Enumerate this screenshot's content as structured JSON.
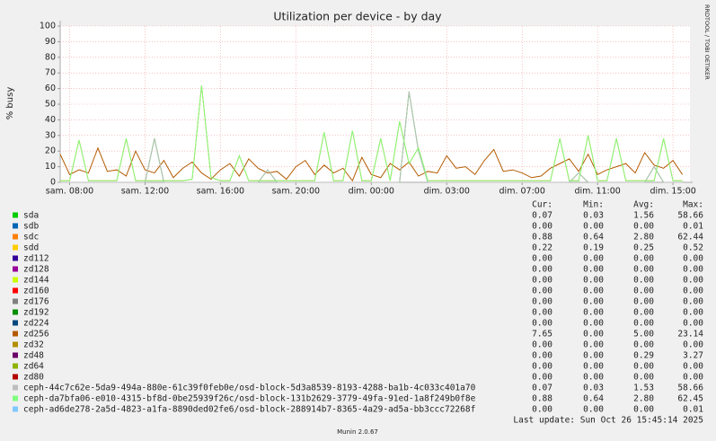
{
  "chart_data": {
    "type": "line",
    "title": "Utilization per device - by day",
    "y_label": "% busy",
    "side_label": "RRDTOOL / TOBI OETIKER",
    "grid": true,
    "xlim": [
      0,
      33.4
    ],
    "xticks": [
      {
        "value": 0.5,
        "label": "sam. 08:00"
      },
      {
        "value": 4.5,
        "label": "sam. 12:00"
      },
      {
        "value": 8.5,
        "label": "sam. 16:00"
      },
      {
        "value": 12.5,
        "label": "sam. 20:00"
      },
      {
        "value": 16.5,
        "label": "dim. 00:00"
      },
      {
        "value": 20.5,
        "label": "dim. 03:00"
      },
      {
        "value": 24.5,
        "label": "dim. 07:00"
      },
      {
        "value": 28.5,
        "label": "dim. 11:00"
      },
      {
        "value": 32.5,
        "label": "dim. 15:00"
      }
    ],
    "ylim": [
      0,
      100
    ],
    "yticks": [
      0,
      10,
      20,
      30,
      40,
      50,
      60,
      70,
      80,
      90,
      100
    ],
    "x": [
      0,
      0.5,
      1,
      1.5,
      2,
      2.5,
      3,
      3.5,
      4,
      4.5,
      5,
      5.5,
      6,
      6.5,
      7,
      7.5,
      8,
      8.5,
      9,
      9.5,
      10,
      10.5,
      11,
      11.5,
      12,
      12.5,
      13,
      13.5,
      14,
      14.5,
      15,
      15.5,
      16,
      16.5,
      17,
      17.5,
      18,
      18.5,
      19,
      19.5,
      20,
      20.5,
      21,
      21.5,
      22,
      22.5,
      23,
      23.5,
      24,
      24.5,
      25,
      25.5,
      26,
      26.5,
      27,
      27.5,
      28,
      28.5,
      29,
      29.5,
      30,
      30.5,
      31,
      31.5,
      32,
      32.5,
      33
    ],
    "legend_headers": [
      "Cur:",
      "Min:",
      "Avg:",
      "Max:"
    ],
    "series": [
      {
        "name": "sda",
        "color": "#00CC00",
        "cur": "0.07",
        "min": "0.03",
        "avg": "1.56",
        "max": "58.66",
        "values": [
          0,
          0,
          0,
          0,
          0,
          0,
          0,
          0,
          0,
          0,
          28,
          0,
          0,
          0,
          0,
          0,
          0,
          0,
          0,
          0,
          0,
          0,
          8,
          0,
          0,
          0,
          0,
          0,
          0,
          0,
          0,
          0,
          0,
          0,
          0,
          0,
          0,
          58,
          20,
          0,
          0,
          0,
          0,
          0,
          0,
          0,
          0,
          0,
          0,
          0,
          0,
          0,
          0,
          0,
          0,
          6,
          0,
          0,
          0,
          0,
          0,
          0,
          0,
          10,
          0,
          0,
          0
        ]
      },
      {
        "name": "sdb",
        "color": "#0066B3",
        "cur": "0.00",
        "min": "0.00",
        "avg": "0.00",
        "max": "0.01"
      },
      {
        "name": "sdc",
        "color": "#FF8000",
        "cur": "0.88",
        "min": "0.64",
        "avg": "2.80",
        "max": "62.44",
        "values": [
          1,
          1,
          27,
          1,
          1,
          1,
          1,
          28,
          1,
          1,
          1,
          1,
          1,
          1,
          2,
          62,
          3,
          1,
          1,
          17,
          1,
          1,
          1,
          1,
          1,
          1,
          1,
          1,
          32,
          1,
          1,
          33,
          1,
          1,
          28,
          1,
          39,
          12,
          22,
          1,
          1,
          1,
          1,
          1,
          1,
          1,
          1,
          1,
          1,
          1,
          1,
          1,
          1,
          28,
          1,
          1,
          30,
          1,
          1,
          28,
          1,
          1,
          1,
          1,
          28,
          1,
          1
        ]
      },
      {
        "name": "sdd",
        "color": "#FFCC00",
        "cur": "0.22",
        "min": "0.19",
        "avg": "0.25",
        "max": "0.52"
      },
      {
        "name": "zd112",
        "color": "#330099",
        "cur": "0.00",
        "min": "0.00",
        "avg": "0.00",
        "max": "0.00"
      },
      {
        "name": "zd128",
        "color": "#990099",
        "cur": "0.00",
        "min": "0.00",
        "avg": "0.00",
        "max": "0.00"
      },
      {
        "name": "zd144",
        "color": "#CCFF00",
        "cur": "0.00",
        "min": "0.00",
        "avg": "0.00",
        "max": "0.00"
      },
      {
        "name": "zd160",
        "color": "#FF0000",
        "cur": "0.00",
        "min": "0.00",
        "avg": "0.00",
        "max": "0.00"
      },
      {
        "name": "zd176",
        "color": "#808080",
        "cur": "0.00",
        "min": "0.00",
        "avg": "0.00",
        "max": "0.00"
      },
      {
        "name": "zd192",
        "color": "#008F00",
        "cur": "0.00",
        "min": "0.00",
        "avg": "0.00",
        "max": "0.00"
      },
      {
        "name": "zd224",
        "color": "#00487D",
        "cur": "0.00",
        "min": "0.00",
        "avg": "0.00",
        "max": "0.00"
      },
      {
        "name": "zd256",
        "color": "#B35A00",
        "cur": "7.65",
        "min": "0.00",
        "avg": "5.00",
        "max": "23.14",
        "values": [
          18,
          5,
          8,
          6,
          22,
          7,
          8,
          4,
          20,
          8,
          6,
          14,
          3,
          9,
          13,
          6,
          2,
          8,
          12,
          4,
          15,
          9,
          6,
          7,
          2,
          10,
          14,
          5,
          11,
          6,
          9,
          1,
          16,
          5,
          3,
          12,
          8,
          13,
          4,
          7,
          6,
          17,
          9,
          10,
          5,
          14,
          21,
          7,
          8,
          6,
          3,
          4,
          9,
          12,
          15,
          7,
          18,
          5,
          8,
          10,
          12,
          6,
          19,
          11,
          9,
          14,
          5
        ]
      },
      {
        "name": "zd32",
        "color": "#B38F00",
        "cur": "0.00",
        "min": "0.00",
        "avg": "0.00",
        "max": "0.00"
      },
      {
        "name": "zd48",
        "color": "#6B006B",
        "cur": "0.00",
        "min": "0.00",
        "avg": "0.29",
        "max": "3.27"
      },
      {
        "name": "zd64",
        "color": "#8FB300",
        "cur": "0.00",
        "min": "0.00",
        "avg": "0.00",
        "max": "0.00"
      },
      {
        "name": "zd80",
        "color": "#B30000",
        "cur": "0.00",
        "min": "0.00",
        "avg": "0.00",
        "max": "0.00"
      },
      {
        "name": "ceph-44c7c62e-5da9-494a-880e-61c39f0feb0e/osd-block-5d3a8539-8193-4288-ba1b-4c033c401a70",
        "color": "#BEBEBE",
        "cur": "0.07",
        "min": "0.03",
        "avg": "1.53",
        "max": "58.66",
        "values": [
          0,
          0,
          0,
          0,
          0,
          0,
          0,
          0,
          0,
          0,
          28,
          0,
          0,
          0,
          0,
          0,
          0,
          0,
          0,
          0,
          0,
          0,
          8,
          0,
          0,
          0,
          0,
          0,
          0,
          0,
          0,
          0,
          0,
          0,
          0,
          0,
          0,
          58,
          20,
          0,
          0,
          0,
          0,
          0,
          0,
          0,
          0,
          0,
          0,
          0,
          0,
          0,
          0,
          0,
          0,
          6,
          0,
          0,
          0,
          0,
          0,
          0,
          0,
          10,
          0,
          0,
          0
        ]
      },
      {
        "name": "ceph-da7bfa06-e010-4315-bf8d-0be25939f26c/osd-block-131b2629-3779-49fa-91ed-1a8f249b0f8e",
        "color": "#80FF80",
        "cur": "0.88",
        "min": "0.64",
        "avg": "2.80",
        "max": "62.45",
        "values": [
          1,
          1,
          27,
          1,
          1,
          1,
          1,
          28,
          1,
          1,
          1,
          1,
          1,
          1,
          2,
          62,
          3,
          1,
          1,
          17,
          1,
          1,
          1,
          1,
          1,
          1,
          1,
          1,
          32,
          1,
          1,
          33,
          1,
          1,
          28,
          1,
          39,
          12,
          22,
          1,
          1,
          1,
          1,
          1,
          1,
          1,
          1,
          1,
          1,
          1,
          1,
          1,
          1,
          28,
          1,
          1,
          30,
          1,
          1,
          28,
          1,
          1,
          1,
          1,
          28,
          1,
          1
        ]
      },
      {
        "name": "ceph-ad6de278-2a5d-4823-a1fa-8890ded02fe6/osd-block-288914b7-8365-4a29-ad5a-bb3ccc72268f",
        "color": "#80C9FF",
        "cur": "0.00",
        "min": "0.00",
        "avg": "0.00",
        "max": "0.01"
      }
    ],
    "last_update": "Last update: Sun Oct 26 15:45:14 2025",
    "footer": "Munin 2.0.67"
  }
}
